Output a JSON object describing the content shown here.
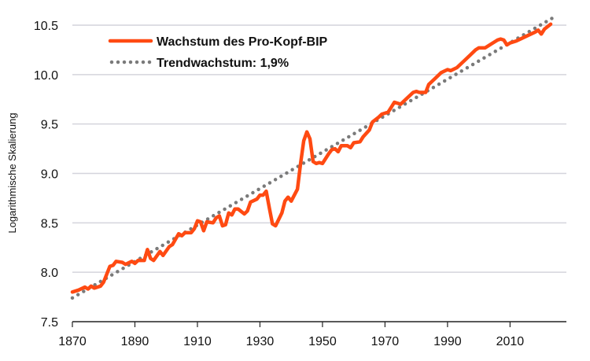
{
  "chart_data": {
    "type": "line",
    "title": "",
    "xlabel": "",
    "ylabel": "Logarithmische Skalierung",
    "xlim": [
      1870,
      2024
    ],
    "ylim": [
      7.5,
      10.5
    ],
    "x_ticks": [
      "1870",
      "1890",
      "1910",
      "1930",
      "1950",
      "1970",
      "1990",
      "2010"
    ],
    "y_ticks": [
      "7.5",
      "8.0",
      "8.5",
      "9.0",
      "9.5",
      "10.0",
      "10.5"
    ],
    "grid": "horizontal",
    "legend_position": "top-left",
    "series": [
      {
        "name": "Wachstum des Pro-Kopf-BIP",
        "color": "#ff4a12",
        "style": "solid",
        "points": [
          [
            1870,
            7.8
          ],
          [
            1872,
            7.82
          ],
          [
            1874,
            7.85
          ],
          [
            1875,
            7.83
          ],
          [
            1876,
            7.86
          ],
          [
            1877,
            7.84
          ],
          [
            1879,
            7.86
          ],
          [
            1880,
            7.9
          ],
          [
            1882,
            8.06
          ],
          [
            1883,
            8.07
          ],
          [
            1884,
            8.11
          ],
          [
            1886,
            8.1
          ],
          [
            1887,
            8.08
          ],
          [
            1889,
            8.11
          ],
          [
            1890,
            8.09
          ],
          [
            1891,
            8.12
          ],
          [
            1893,
            8.12
          ],
          [
            1894,
            8.23
          ],
          [
            1895,
            8.14
          ],
          [
            1896,
            8.12
          ],
          [
            1898,
            8.21
          ],
          [
            1899,
            8.17
          ],
          [
            1901,
            8.26
          ],
          [
            1902,
            8.28
          ],
          [
            1904,
            8.39
          ],
          [
            1905,
            8.37
          ],
          [
            1906,
            8.4
          ],
          [
            1908,
            8.4
          ],
          [
            1909,
            8.44
          ],
          [
            1910,
            8.52
          ],
          [
            1911,
            8.51
          ],
          [
            1912,
            8.42
          ],
          [
            1913,
            8.51
          ],
          [
            1915,
            8.5
          ],
          [
            1916,
            8.55
          ],
          [
            1917,
            8.57
          ],
          [
            1918,
            8.47
          ],
          [
            1919,
            8.48
          ],
          [
            1920,
            8.6
          ],
          [
            1921,
            8.58
          ],
          [
            1922,
            8.64
          ],
          [
            1923,
            8.64
          ],
          [
            1925,
            8.59
          ],
          [
            1926,
            8.62
          ],
          [
            1927,
            8.71
          ],
          [
            1929,
            8.74
          ],
          [
            1930,
            8.78
          ],
          [
            1931,
            8.78
          ],
          [
            1932,
            8.82
          ],
          [
            1933,
            8.65
          ],
          [
            1934,
            8.49
          ],
          [
            1935,
            8.47
          ],
          [
            1937,
            8.6
          ],
          [
            1938,
            8.72
          ],
          [
            1939,
            8.76
          ],
          [
            1940,
            8.72
          ],
          [
            1942,
            8.84
          ],
          [
            1943,
            9.1
          ],
          [
            1944,
            9.33
          ],
          [
            1945,
            9.42
          ],
          [
            1946,
            9.35
          ],
          [
            1947,
            9.12
          ],
          [
            1948,
            9.1
          ],
          [
            1949,
            9.11
          ],
          [
            1950,
            9.1
          ],
          [
            1952,
            9.2
          ],
          [
            1953,
            9.24
          ],
          [
            1954,
            9.25
          ],
          [
            1955,
            9.22
          ],
          [
            1956,
            9.28
          ],
          [
            1958,
            9.28
          ],
          [
            1959,
            9.26
          ],
          [
            1960,
            9.31
          ],
          [
            1962,
            9.32
          ],
          [
            1963,
            9.37
          ],
          [
            1965,
            9.44
          ],
          [
            1966,
            9.52
          ],
          [
            1968,
            9.57
          ],
          [
            1969,
            9.6
          ],
          [
            1971,
            9.62
          ],
          [
            1972,
            9.67
          ],
          [
            1973,
            9.72
          ],
          [
            1975,
            9.7
          ],
          [
            1977,
            9.76
          ],
          [
            1979,
            9.82
          ],
          [
            1980,
            9.83
          ],
          [
            1981,
            9.82
          ],
          [
            1983,
            9.82
          ],
          [
            1984,
            9.9
          ],
          [
            1986,
            9.96
          ],
          [
            1988,
            10.02
          ],
          [
            1990,
            10.05
          ],
          [
            1991,
            10.04
          ],
          [
            1993,
            10.07
          ],
          [
            1995,
            10.13
          ],
          [
            1997,
            10.19
          ],
          [
            1999,
            10.25
          ],
          [
            2000,
            10.27
          ],
          [
            2002,
            10.27
          ],
          [
            2004,
            10.31
          ],
          [
            2006,
            10.35
          ],
          [
            2007,
            10.36
          ],
          [
            2008,
            10.35
          ],
          [
            2009,
            10.3
          ],
          [
            2010,
            10.32
          ],
          [
            2012,
            10.34
          ],
          [
            2014,
            10.37
          ],
          [
            2016,
            10.4
          ],
          [
            2018,
            10.43
          ],
          [
            2019,
            10.45
          ],
          [
            2020,
            10.41
          ],
          [
            2021,
            10.46
          ],
          [
            2023,
            10.51
          ]
        ]
      },
      {
        "name": "Trendwachstum: 1,9%",
        "color": "#7a7a7a",
        "style": "dotted",
        "points": [
          [
            1870,
            7.74
          ],
          [
            2024,
            10.58
          ]
        ]
      }
    ]
  }
}
